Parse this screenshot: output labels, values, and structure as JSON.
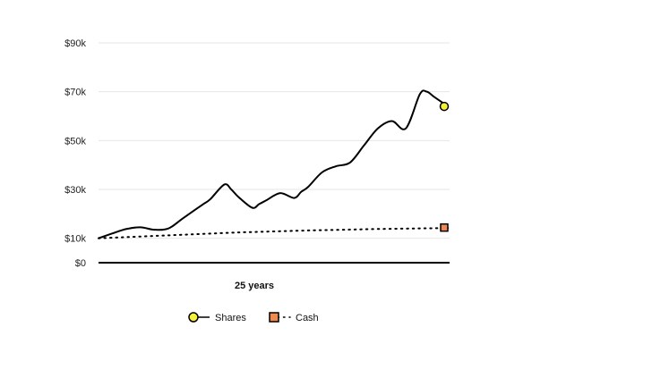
{
  "chart_data": {
    "type": "line",
    "xlabel": "25 years",
    "ylabel": "",
    "ylim": [
      0,
      90000
    ],
    "xlim": [
      0,
      25
    ],
    "yticks": [
      0,
      10000,
      30000,
      50000,
      70000,
      90000
    ],
    "ytick_labels": [
      "$0",
      "$10k",
      "$30k",
      "$50k",
      "$70k",
      "$90k"
    ],
    "grid": true,
    "legend": "bottom-center",
    "series": [
      {
        "name": "Shares",
        "style": "solid",
        "color": "#000000",
        "marker": "circle",
        "marker_color": "#f5f03a",
        "x": [
          0,
          1,
          2,
          3,
          4,
          5,
          6,
          7,
          7.5,
          8,
          9,
          9.5,
          10,
          11,
          11.5,
          12,
          13,
          14,
          14.5,
          15,
          16,
          17,
          18,
          19,
          20,
          21,
          22,
          23,
          23.5,
          24,
          25
        ],
        "y": [
          10000,
          12000,
          13800,
          14500,
          13500,
          14000,
          18000,
          22000,
          24000,
          26000,
          32000,
          30000,
          27000,
          22500,
          24000,
          25500,
          28500,
          26500,
          29000,
          31000,
          37000,
          39500,
          41000,
          48000,
          55000,
          58000,
          55000,
          69000,
          70000,
          68000,
          64000
        ]
      },
      {
        "name": "Cash",
        "style": "dotted",
        "color": "#000000",
        "marker": "square",
        "marker_color": "#ef8a50",
        "x": [
          0,
          5,
          10,
          15,
          20,
          25
        ],
        "y": [
          10000,
          11200,
          12400,
          13200,
          13800,
          14200
        ]
      }
    ]
  }
}
